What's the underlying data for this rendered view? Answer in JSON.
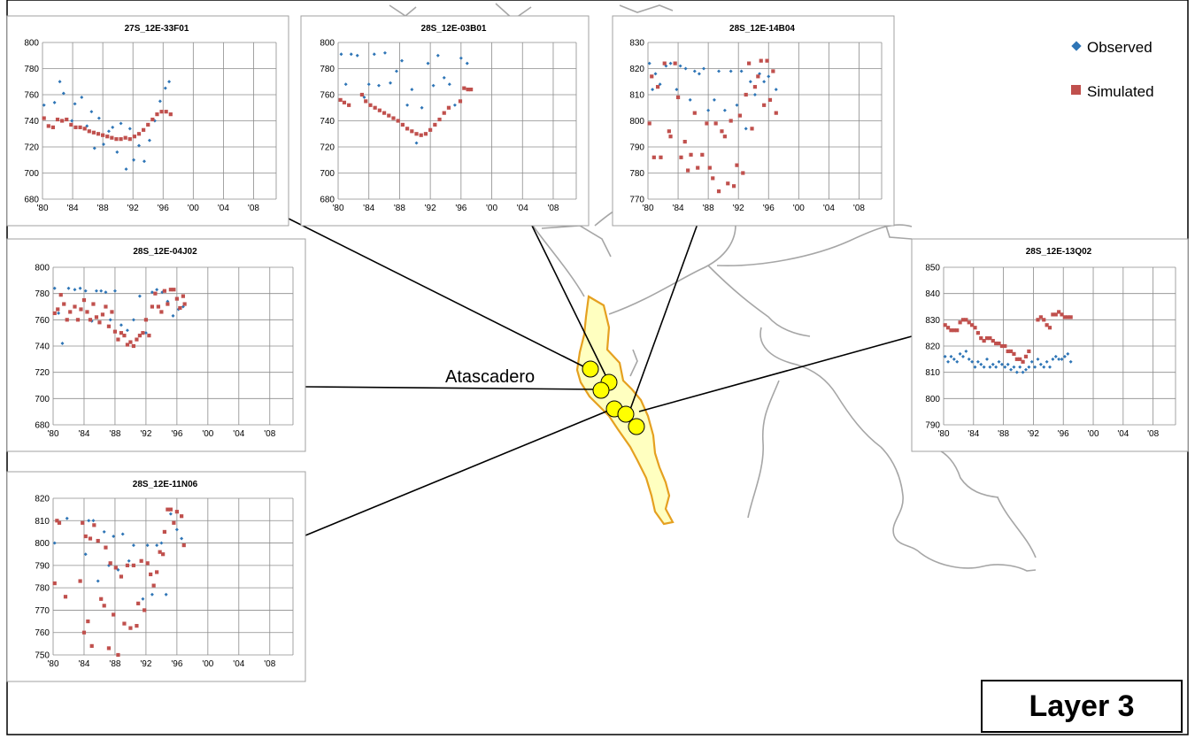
{
  "place_label": "Atascadero",
  "layer_label": "Layer 3",
  "legend": {
    "observed": "Observed",
    "simulated": "Simulated"
  },
  "colors": {
    "observed": "#2e75b6",
    "simulated": "#c0504d",
    "basin_fill": "#ffffc0",
    "basin_outline": "#e5a020",
    "well": "#ffff00",
    "map_line": "#a6a6a6"
  },
  "icons": {
    "observed": "diamond-marker",
    "simulated": "square-marker"
  },
  "chart_data": [
    {
      "type": "scatter",
      "title": "27S_12E-33F01",
      "categories": [
        "'80",
        "'84",
        "'88",
        "'92",
        "'96",
        "'00",
        "'04",
        "'08"
      ],
      "ylim": [
        680,
        800
      ],
      "yticks": [
        680,
        700,
        720,
        740,
        760,
        780,
        800
      ],
      "xlim": [
        1980,
        2011
      ],
      "grid": true,
      "series": [
        {
          "name": "Observed",
          "x": [
            1980.2,
            1981.6,
            1982.3,
            1982.8,
            1983.9,
            1984.3,
            1985.2,
            1985.9,
            1986.5,
            1986.9,
            1987.5,
            1988.1,
            1988.8,
            1989.3,
            1989.9,
            1990.4,
            1991.1,
            1991.6,
            1992.1,
            1992.8,
            1993.5,
            1994.2,
            1994.9,
            1995.6,
            1996.3,
            1996.8
          ],
          "y": [
            752,
            754,
            770,
            761,
            740,
            753,
            758,
            736,
            747,
            719,
            742,
            722,
            732,
            735,
            716,
            738,
            703,
            734,
            710,
            721,
            709,
            725,
            740,
            755,
            765,
            770
          ]
        },
        {
          "name": "Simulated",
          "x": [
            1980.2,
            1980.8,
            1981.4,
            1982.0,
            1982.6,
            1983.2,
            1983.8,
            1984.4,
            1985.0,
            1985.6,
            1986.2,
            1986.8,
            1987.4,
            1988.0,
            1988.6,
            1989.2,
            1989.8,
            1990.4,
            1991.0,
            1991.6,
            1992.2,
            1992.8,
            1993.4,
            1994.0,
            1994.6,
            1995.2,
            1995.8,
            1996.4,
            1997.0
          ],
          "y": [
            742,
            736,
            735,
            741,
            740,
            741,
            737,
            735,
            735,
            734,
            732,
            731,
            730,
            729,
            728,
            727,
            726,
            726,
            727,
            726,
            728,
            730,
            733,
            737,
            741,
            745,
            747,
            747,
            745
          ]
        }
      ]
    },
    {
      "type": "scatter",
      "title": "28S_12E-03B01",
      "categories": [
        "'80",
        "'84",
        "'88",
        "'92",
        "'96",
        "'00",
        "'04",
        "'08"
      ],
      "ylim": [
        680,
        800
      ],
      "yticks": [
        680,
        700,
        720,
        740,
        760,
        780,
        800
      ],
      "xlim": [
        1980,
        2011
      ],
      "grid": true,
      "series": [
        {
          "name": "Observed",
          "x": [
            1980.4,
            1981.0,
            1981.7,
            1982.5,
            1983.4,
            1984.0,
            1984.7,
            1985.3,
            1986.1,
            1986.8,
            1987.6,
            1988.3,
            1989.0,
            1989.6,
            1990.2,
            1990.9,
            1991.7,
            1992.4,
            1993.0,
            1993.8,
            1994.5,
            1995.2,
            1996.0,
            1996.8
          ],
          "y": [
            791,
            768,
            791,
            790,
            758,
            768,
            791,
            767,
            792,
            769,
            778,
            786,
            752,
            764,
            723,
            750,
            784,
            767,
            790,
            773,
            768,
            752,
            788,
            784
          ]
        },
        {
          "name": "Simulated",
          "x": [
            1980.3,
            1980.8,
            1981.4,
            1983.1,
            1983.6,
            1984.2,
            1984.8,
            1985.4,
            1986.0,
            1986.6,
            1987.2,
            1987.8,
            1988.4,
            1989.0,
            1989.6,
            1990.2,
            1990.8,
            1991.4,
            1992.0,
            1992.6,
            1993.2,
            1993.8,
            1994.4,
            1995.9,
            1996.4,
            1996.9,
            1997.3
          ],
          "y": [
            756,
            754,
            752,
            760,
            755,
            752,
            750,
            748,
            746,
            744,
            742,
            740,
            737,
            734,
            732,
            730,
            729,
            730,
            733,
            737,
            741,
            746,
            750,
            755,
            765,
            764,
            764
          ]
        }
      ]
    },
    {
      "type": "scatter",
      "title": "28S_12E-14B04",
      "categories": [
        "'80",
        "'84",
        "'88",
        "'92",
        "'96",
        "'00",
        "'04",
        "'08"
      ],
      "ylim": [
        770,
        830
      ],
      "yticks": [
        770,
        780,
        790,
        800,
        810,
        820,
        830
      ],
      "xlim": [
        1980,
        2011
      ],
      "grid": true,
      "series": [
        {
          "name": "Observed",
          "x": [
            1980.2,
            1980.6,
            1981.0,
            1981.6,
            1982.4,
            1983.0,
            1983.8,
            1984.3,
            1985.0,
            1985.6,
            1986.2,
            1986.8,
            1987.4,
            1988.0,
            1988.8,
            1989.4,
            1990.2,
            1991.0,
            1991.8,
            1992.4,
            1993.0,
            1993.6,
            1994.2,
            1994.8,
            1995.4,
            1996.0,
            1996.6,
            1997.0
          ],
          "y": [
            822,
            812,
            818,
            814,
            821,
            822,
            812,
            821,
            820,
            808,
            819,
            818,
            820,
            804,
            808,
            819,
            804,
            819,
            806,
            819,
            797,
            815,
            810,
            818,
            815,
            817,
            819,
            812
          ]
        },
        {
          "name": "Simulated",
          "x": [
            1980.2,
            1980.5,
            1980.8,
            1981.3,
            1981.7,
            1982.2,
            1982.8,
            1983.0,
            1983.6,
            1984.0,
            1984.4,
            1984.9,
            1985.3,
            1985.7,
            1986.2,
            1986.6,
            1987.2,
            1987.8,
            1988.2,
            1988.6,
            1989.0,
            1989.4,
            1989.8,
            1990.2,
            1990.6,
            1991.0,
            1991.4,
            1991.8,
            1992.2,
            1992.6,
            1993.0,
            1993.4,
            1993.8,
            1994.2,
            1994.6,
            1995.0,
            1995.4,
            1995.8,
            1996.2,
            1996.6,
            1997.0
          ],
          "y": [
            799,
            817,
            786,
            813,
            786,
            822,
            796,
            794,
            822,
            809,
            786,
            792,
            781,
            787,
            803,
            782,
            787,
            799,
            782,
            778,
            799,
            773,
            796,
            794,
            776,
            800,
            775,
            783,
            802,
            780,
            810,
            822,
            797,
            813,
            817,
            823,
            806,
            823,
            808,
            819,
            803
          ]
        }
      ]
    },
    {
      "type": "scatter",
      "title": "28S_12E-04J02",
      "categories": [
        "'80",
        "'84",
        "'88",
        "'92",
        "'96",
        "'00",
        "'04",
        "'08"
      ],
      "ylim": [
        680,
        800
      ],
      "yticks": [
        680,
        700,
        720,
        740,
        760,
        780,
        800
      ],
      "xlim": [
        1980,
        2011
      ],
      "grid": true,
      "series": [
        {
          "name": "Observed",
          "x": [
            1980.2,
            1980.7,
            1981.2,
            1982.0,
            1982.8,
            1983.5,
            1984.2,
            1985.0,
            1985.6,
            1986.2,
            1986.8,
            1987.4,
            1988.0,
            1988.8,
            1989.6,
            1990.4,
            1991.2,
            1992.0,
            1992.8,
            1993.4,
            1994.1,
            1994.8,
            1995.5,
            1996.2,
            1996.8
          ],
          "y": [
            784,
            765,
            742,
            784,
            783,
            784,
            782,
            759,
            782,
            782,
            781,
            760,
            782,
            756,
            752,
            760,
            778,
            750,
            781,
            783,
            781,
            774,
            763,
            768,
            770
          ]
        },
        {
          "name": "Simulated",
          "x": [
            1980.2,
            1980.6,
            1981.0,
            1981.4,
            1981.8,
            1982.2,
            1982.8,
            1983.2,
            1983.6,
            1984.0,
            1984.4,
            1984.8,
            1985.2,
            1985.6,
            1986.0,
            1986.4,
            1986.8,
            1987.2,
            1987.6,
            1988.0,
            1988.4,
            1988.8,
            1989.2,
            1989.6,
            1990.0,
            1990.4,
            1990.8,
            1991.2,
            1991.6,
            1992.0,
            1992.4,
            1992.8,
            1993.2,
            1993.6,
            1994.0,
            1994.4,
            1994.8,
            1995.2,
            1995.6,
            1996.0,
            1996.4,
            1996.8,
            1997.0
          ],
          "y": [
            765,
            768,
            779,
            772,
            760,
            766,
            770,
            760,
            768,
            775,
            766,
            760,
            772,
            762,
            758,
            764,
            770,
            755,
            766,
            751,
            745,
            750,
            748,
            741,
            743,
            740,
            745,
            748,
            750,
            760,
            748,
            770,
            780,
            770,
            766,
            782,
            772,
            783,
            783,
            776,
            769,
            778,
            772
          ]
        }
      ]
    },
    {
      "type": "scatter",
      "title": "28S_12E-13Q02",
      "categories": [
        "'80",
        "'84",
        "'88",
        "'92",
        "'96",
        "'00",
        "'04",
        "'08"
      ],
      "ylim": [
        790,
        850
      ],
      "yticks": [
        790,
        800,
        810,
        820,
        830,
        840,
        850
      ],
      "xlim": [
        1980,
        2011
      ],
      "grid": true,
      "series": [
        {
          "name": "Observed",
          "x": [
            1980.2,
            1980.6,
            1981.0,
            1981.4,
            1981.8,
            1982.2,
            1982.6,
            1983.0,
            1983.4,
            1983.8,
            1984.2,
            1984.6,
            1985.0,
            1985.4,
            1985.8,
            1986.2,
            1986.6,
            1987.0,
            1987.4,
            1987.8,
            1988.2,
            1988.6,
            1989.0,
            1989.4,
            1989.8,
            1990.2,
            1990.6,
            1991.0,
            1991.4,
            1991.8,
            1992.2,
            1992.6,
            1993.0,
            1993.4,
            1993.8,
            1994.2,
            1994.6,
            1995.0,
            1995.4,
            1995.8,
            1996.2,
            1996.6,
            1997.0
          ],
          "y": [
            816,
            814,
            816,
            815,
            814,
            817,
            816,
            818,
            815,
            814,
            812,
            814,
            813,
            812,
            815,
            812,
            813,
            812,
            814,
            813,
            812,
            813,
            811,
            812,
            810,
            812,
            810,
            811,
            812,
            814,
            812,
            815,
            813,
            812,
            814,
            812,
            815,
            816,
            815,
            815,
            816,
            817,
            814
          ]
        },
        {
          "name": "Simulated",
          "x": [
            1980.2,
            1980.6,
            1981.0,
            1981.4,
            1981.8,
            1982.2,
            1982.6,
            1983.0,
            1983.4,
            1983.8,
            1984.2,
            1984.6,
            1985.0,
            1985.4,
            1985.8,
            1986.2,
            1986.6,
            1987.0,
            1987.4,
            1987.8,
            1988.2,
            1988.6,
            1989.0,
            1989.4,
            1989.8,
            1990.2,
            1990.6,
            1991.0,
            1991.4,
            1992.6,
            1993.0,
            1993.4,
            1993.8,
            1994.2,
            1994.6,
            1995.0,
            1995.4,
            1995.8,
            1996.2,
            1996.6,
            1997.0
          ],
          "y": [
            828,
            827,
            826,
            826,
            826,
            829,
            830,
            830,
            829,
            828,
            827,
            825,
            823,
            822,
            823,
            823,
            822,
            821,
            821,
            820,
            820,
            818,
            818,
            817,
            815,
            815,
            814,
            816,
            818,
            830,
            831,
            830,
            828,
            827,
            832,
            832,
            833,
            832,
            831,
            831,
            831
          ]
        }
      ]
    },
    {
      "type": "scatter",
      "title": "28S_12E-11N06",
      "categories": [
        "'80",
        "'84",
        "'88",
        "'92",
        "'96",
        "'00",
        "'04",
        "'08"
      ],
      "ylim": [
        750,
        820
      ],
      "yticks": [
        750,
        760,
        770,
        780,
        790,
        800,
        810,
        820
      ],
      "xlim": [
        1980,
        2011
      ],
      "grid": true,
      "series": [
        {
          "name": "Observed",
          "x": [
            1980.2,
            1981.8,
            1984.2,
            1984.6,
            1985.2,
            1985.8,
            1986.6,
            1987.2,
            1987.8,
            1988.4,
            1989.0,
            1989.8,
            1990.4,
            1991.0,
            1991.6,
            1992.2,
            1992.8,
            1993.4,
            1994.0,
            1994.6,
            1995.2,
            1996.0,
            1996.6
          ],
          "y": [
            800,
            811,
            795,
            810,
            810,
            783,
            805,
            790,
            803,
            788,
            804,
            792,
            799,
            773,
            775,
            799,
            777,
            799,
            800,
            777,
            813,
            806,
            802
          ]
        },
        {
          "name": "Simulated",
          "x": [
            1980.2,
            1980.5,
            1980.8,
            1981.6,
            1983.5,
            1983.8,
            1984.0,
            1984.2,
            1984.5,
            1984.8,
            1985.0,
            1985.3,
            1985.8,
            1986.2,
            1986.6,
            1986.8,
            1987.2,
            1987.4,
            1987.8,
            1988.1,
            1988.4,
            1988.8,
            1989.2,
            1989.6,
            1990.0,
            1990.4,
            1990.8,
            1991.0,
            1991.4,
            1991.8,
            1992.2,
            1992.6,
            1993.0,
            1993.4,
            1993.8,
            1994.2,
            1994.4,
            1994.8,
            1995.2,
            1995.6,
            1996.0,
            1996.6,
            1996.9
          ],
          "y": [
            782,
            810,
            809,
            776,
            783,
            809,
            760,
            803,
            765,
            802,
            754,
            808,
            801,
            775,
            772,
            798,
            753,
            791,
            768,
            789,
            750,
            785,
            764,
            790,
            762,
            790,
            763,
            773,
            792,
            770,
            791,
            786,
            781,
            787,
            796,
            795,
            805,
            815,
            815,
            809,
            814,
            812,
            799
          ]
        }
      ]
    }
  ]
}
